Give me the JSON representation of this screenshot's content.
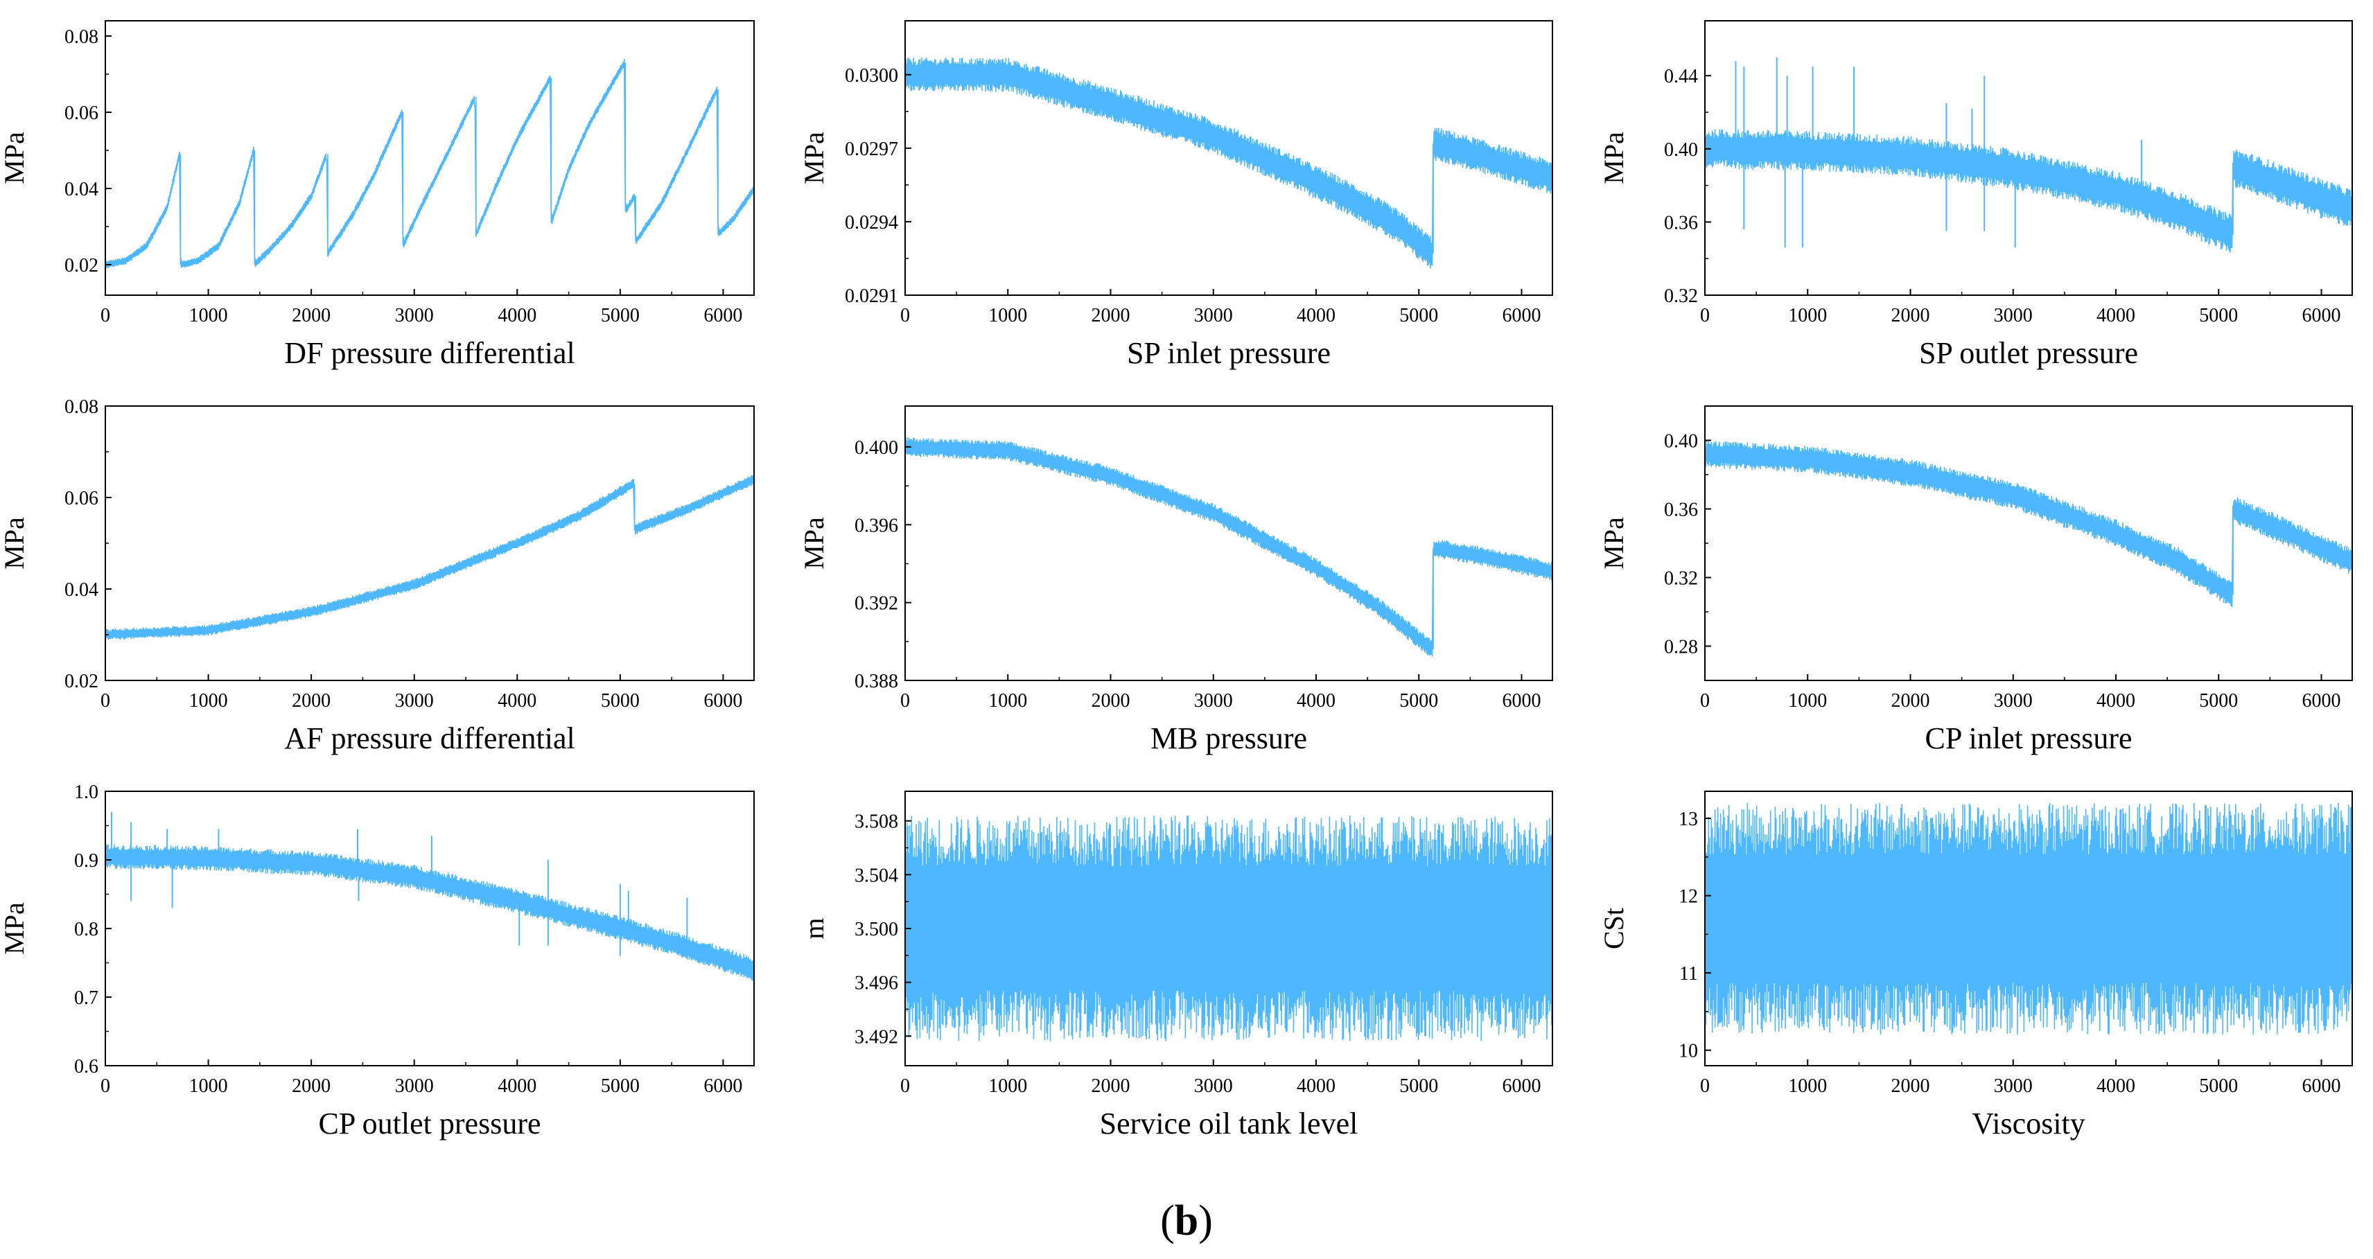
{
  "figure_label": {
    "open": "(",
    "letter": "b",
    "close": ")"
  },
  "chart_data": [
    {
      "type": "line",
      "xlabel": "DF pressure differential",
      "ylabel": "MPa",
      "xlim": [
        0,
        6300
      ],
      "ylim": [
        0.012,
        0.084
      ],
      "xticks": [
        0,
        1000,
        2000,
        3000,
        4000,
        5000,
        6000
      ],
      "xtick_labels": [
        "0",
        "1000",
        "2000",
        "3000",
        "4000",
        "5000",
        "6000"
      ],
      "yticks": [
        0.02,
        0.04,
        0.06,
        0.08
      ],
      "ytick_labels": [
        "0.02",
        "0.04",
        "0.06",
        "0.08"
      ],
      "color": "#4db8ff",
      "grid": false,
      "legend": "none",
      "series": [
        {
          "x": [
            0,
            200,
            400,
            600,
            720,
            730,
            900,
            1100,
            1300,
            1440,
            1450,
            1600,
            1800,
            2000,
            2150,
            2160,
            2400,
            2600,
            2880,
            2890,
            3100,
            3300,
            3590,
            3600,
            3800,
            4000,
            4320,
            4330,
            4500,
            4700,
            5040,
            5050,
            5140,
            5150,
            5400,
            5600,
            5940,
            5950,
            6100,
            6300
          ],
          "y": [
            0.02,
            0.021,
            0.025,
            0.035,
            0.049,
            0.02,
            0.021,
            0.025,
            0.036,
            0.05,
            0.02,
            0.024,
            0.03,
            0.038,
            0.049,
            0.023,
            0.033,
            0.043,
            0.06,
            0.025,
            0.037,
            0.048,
            0.064,
            0.028,
            0.041,
            0.053,
            0.069,
            0.031,
            0.045,
            0.057,
            0.073,
            0.034,
            0.038,
            0.026,
            0.036,
            0.047,
            0.066,
            0.028,
            0.032,
            0.04
          ],
          "band": 0.001,
          "spikes": []
        }
      ]
    },
    {
      "type": "line",
      "xlabel": "SP inlet pressure",
      "ylabel": "MPa",
      "xlim": [
        0,
        6300
      ],
      "ylim": [
        0.0291,
        0.03022
      ],
      "xticks": [
        0,
        1000,
        2000,
        3000,
        4000,
        5000,
        6000
      ],
      "xtick_labels": [
        "0",
        "1000",
        "2000",
        "3000",
        "4000",
        "5000",
        "6000"
      ],
      "yticks": [
        0.0291,
        0.0294,
        0.0297,
        0.03
      ],
      "ytick_labels": [
        "0.0291",
        "0.0294",
        "0.0297",
        "0.0300"
      ],
      "color": "#4db8ff",
      "grid": false,
      "legend": "none",
      "series": [
        {
          "x": [
            0,
            1000,
            2000,
            3000,
            3800,
            4400,
            4800,
            5130,
            5140,
            5500,
            5900,
            6300
          ],
          "y": [
            0.03,
            0.03,
            0.02988,
            0.02975,
            0.0296,
            0.02948,
            0.02938,
            0.02927,
            0.02972,
            0.02968,
            0.02963,
            0.02958
          ],
          "band": 7e-05,
          "spikes": []
        }
      ]
    },
    {
      "type": "line",
      "xlabel": "SP outlet pressure",
      "ylabel": "MPa",
      "xlim": [
        0,
        6300
      ],
      "ylim": [
        0.32,
        0.47
      ],
      "xticks": [
        0,
        1000,
        2000,
        3000,
        4000,
        5000,
        6000
      ],
      "xtick_labels": [
        "0",
        "1000",
        "2000",
        "3000",
        "4000",
        "5000",
        "6000"
      ],
      "yticks": [
        0.32,
        0.36,
        0.4,
        0.44
      ],
      "ytick_labels": [
        "0.32",
        "0.36",
        "0.40",
        "0.44"
      ],
      "color": "#4db8ff",
      "grid": false,
      "legend": "none",
      "series": [
        {
          "x": [
            0,
            1000,
            2000,
            3000,
            4000,
            4600,
            5130,
            5140,
            5600,
            6300
          ],
          "y": [
            0.4,
            0.399,
            0.396,
            0.389,
            0.377,
            0.366,
            0.353,
            0.39,
            0.381,
            0.367
          ],
          "band": 0.011,
          "spikes": [
            [
              300,
              0.448
            ],
            [
              380,
              0.445
            ],
            [
              700,
              0.45
            ],
            [
              800,
              0.44
            ],
            [
              1050,
              0.445
            ],
            [
              1450,
              0.445
            ],
            [
              2350,
              0.425
            ],
            [
              2600,
              0.422
            ],
            [
              2720,
              0.44
            ],
            [
              4250,
              0.405
            ],
            [
              380,
              0.356
            ],
            [
              780,
              0.346
            ],
            [
              950,
              0.346
            ],
            [
              2350,
              0.355
            ],
            [
              2720,
              0.355
            ],
            [
              3020,
              0.346
            ]
          ]
        }
      ]
    },
    {
      "type": "line",
      "xlabel": "AF pressure differential",
      "ylabel": "MPa",
      "xlim": [
        0,
        6300
      ],
      "ylim": [
        0.02,
        0.08
      ],
      "xticks": [
        0,
        1000,
        2000,
        3000,
        4000,
        5000,
        6000
      ],
      "xtick_labels": [
        "0",
        "1000",
        "2000",
        "3000",
        "4000",
        "5000",
        "6000"
      ],
      "yticks": [
        0.02,
        0.04,
        0.06,
        0.08
      ],
      "ytick_labels": [
        "0.02",
        "0.04",
        "0.06",
        "0.08"
      ],
      "color": "#4db8ff",
      "grid": false,
      "legend": "none",
      "series": [
        {
          "x": [
            0,
            1000,
            2000,
            3000,
            4000,
            4600,
            5130,
            5140,
            5600,
            6300
          ],
          "y": [
            0.03,
            0.031,
            0.035,
            0.041,
            0.05,
            0.056,
            0.063,
            0.053,
            0.057,
            0.064
          ],
          "band": 0.0012,
          "spikes": []
        }
      ]
    },
    {
      "type": "line",
      "xlabel": "MB pressure",
      "ylabel": "MPa",
      "xlim": [
        0,
        6300
      ],
      "ylim": [
        0.388,
        0.4021
      ],
      "xticks": [
        0,
        1000,
        2000,
        3000,
        4000,
        5000,
        6000
      ],
      "xtick_labels": [
        "0",
        "1000",
        "2000",
        "3000",
        "4000",
        "5000",
        "6000"
      ],
      "yticks": [
        0.388,
        0.392,
        0.396,
        0.4
      ],
      "ytick_labels": [
        "0.388",
        "0.392",
        "0.396",
        "0.400"
      ],
      "color": "#4db8ff",
      "grid": false,
      "legend": "none",
      "series": [
        {
          "x": [
            0,
            1000,
            2000,
            3000,
            4000,
            4600,
            5130,
            5140,
            5600,
            6300
          ],
          "y": [
            0.4,
            0.3998,
            0.3985,
            0.3966,
            0.3938,
            0.3918,
            0.3896,
            0.3948,
            0.3944,
            0.3936
          ],
          "band": 0.0005,
          "spikes": []
        }
      ]
    },
    {
      "type": "line",
      "xlabel": "CP inlet pressure",
      "ylabel": "MPa",
      "xlim": [
        0,
        6300
      ],
      "ylim": [
        0.26,
        0.42
      ],
      "xticks": [
        0,
        1000,
        2000,
        3000,
        4000,
        5000,
        6000
      ],
      "xtick_labels": [
        "0",
        "1000",
        "2000",
        "3000",
        "4000",
        "5000",
        "6000"
      ],
      "yticks": [
        0.28,
        0.32,
        0.36,
        0.4
      ],
      "ytick_labels": [
        "0.28",
        "0.32",
        "0.36",
        "0.40"
      ],
      "color": "#4db8ff",
      "grid": false,
      "legend": "none",
      "series": [
        {
          "x": [
            0,
            1000,
            2000,
            3000,
            4000,
            4600,
            5130,
            5140,
            5600,
            6300
          ],
          "y": [
            0.392,
            0.389,
            0.381,
            0.368,
            0.346,
            0.33,
            0.31,
            0.36,
            0.348,
            0.329
          ],
          "band": 0.008,
          "spikes": []
        }
      ]
    },
    {
      "type": "line",
      "xlabel": "CP outlet pressure",
      "ylabel": "MPa",
      "xlim": [
        0,
        6300
      ],
      "ylim": [
        0.6,
        1.0
      ],
      "xticks": [
        0,
        1000,
        2000,
        3000,
        4000,
        5000,
        6000
      ],
      "xtick_labels": [
        "0",
        "1000",
        "2000",
        "3000",
        "4000",
        "5000",
        "6000"
      ],
      "yticks": [
        0.6,
        0.7,
        0.8,
        0.9,
        1.0
      ],
      "ytick_labels": [
        "0.6",
        "0.7",
        "0.8",
        "0.9",
        "1.0"
      ],
      "color": "#4db8ff",
      "grid": false,
      "legend": "none",
      "series": [
        {
          "x": [
            0,
            1000,
            2000,
            3000,
            4000,
            5000,
            5600,
            6300
          ],
          "y": [
            0.905,
            0.902,
            0.895,
            0.875,
            0.84,
            0.8,
            0.775,
            0.74
          ],
          "band": 0.018,
          "spikes": [
            [
              60,
              0.97
            ],
            [
              250,
              0.955
            ],
            [
              600,
              0.945
            ],
            [
              1100,
              0.945
            ],
            [
              2450,
              0.945
            ],
            [
              3170,
              0.935
            ],
            [
              4300,
              0.9
            ],
            [
              5000,
              0.865
            ],
            [
              5080,
              0.855
            ],
            [
              5650,
              0.845
            ],
            [
              250,
              0.84
            ],
            [
              650,
              0.83
            ],
            [
              2460,
              0.84
            ],
            [
              4020,
              0.775
            ],
            [
              4300,
              0.775
            ],
            [
              5000,
              0.76
            ]
          ]
        }
      ]
    },
    {
      "type": "line",
      "xlabel": "Service oil tank level",
      "ylabel": "m",
      "xlim": [
        0,
        6300
      ],
      "ylim": [
        3.4898,
        3.5102
      ],
      "xticks": [
        0,
        1000,
        2000,
        3000,
        4000,
        5000,
        6000
      ],
      "xtick_labels": [
        "0",
        "1000",
        "2000",
        "3000",
        "4000",
        "5000",
        "6000"
      ],
      "yticks": [
        3.492,
        3.496,
        3.5,
        3.504,
        3.508
      ],
      "ytick_labels": [
        "3.492",
        "3.496",
        "3.500",
        "3.504",
        "3.508"
      ],
      "color": "#4db8ff",
      "grid": false,
      "legend": "none",
      "series": [
        {
          "x": [
            0,
            6300
          ],
          "y": [
            3.5,
            3.5
          ],
          "band": 0.0084,
          "spikes": []
        }
      ]
    },
    {
      "type": "line",
      "xlabel": "Viscosity",
      "ylabel": "CSt",
      "xlim": [
        0,
        6300
      ],
      "ylim": [
        9.8,
        13.35
      ],
      "xticks": [
        0,
        1000,
        2000,
        3000,
        4000,
        5000,
        6000
      ],
      "xtick_labels": [
        "0",
        "1000",
        "2000",
        "3000",
        "4000",
        "5000",
        "6000"
      ],
      "yticks": [
        10,
        11,
        12,
        13
      ],
      "ytick_labels": [
        "10",
        "11",
        "12",
        "13"
      ],
      "color": "#4db8ff",
      "grid": false,
      "legend": "none",
      "series": [
        {
          "x": [
            0,
            6300
          ],
          "y": [
            11.7,
            11.7
          ],
          "band": 1.5,
          "spikes": []
        }
      ]
    }
  ]
}
